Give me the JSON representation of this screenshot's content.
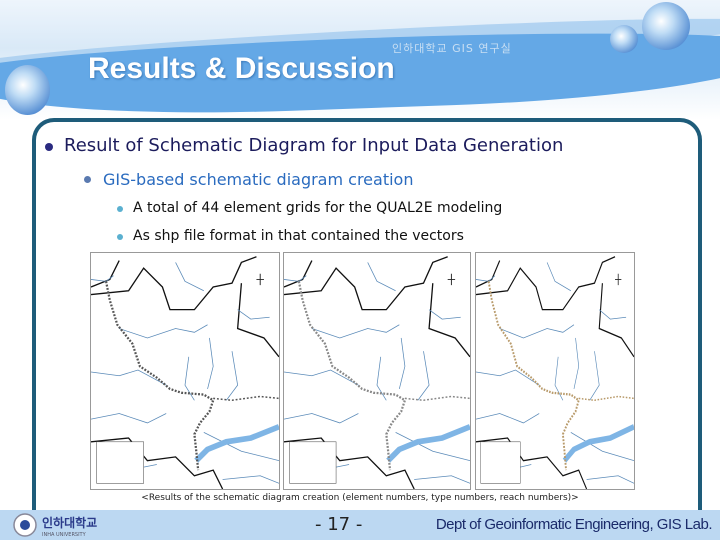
{
  "header": {
    "title": "Results & Discussion",
    "subtitle": "인하대학교 GIS 연구실"
  },
  "content": {
    "bullet1": "Result of Schematic Diagram for Input Data Generation",
    "bullet2": "GIS-based schematic diagram creation",
    "bullet3": [
      "A total of 44 element grids for the QUAL2E modeling",
      "As shp file format in that contained the vectors"
    ]
  },
  "figure": {
    "caption": "<Results of the schematic diagram creation (element numbers, type numbers, reach numbers)>",
    "maps": [
      {
        "schematic_color": "#555555"
      },
      {
        "schematic_color": "#888888"
      },
      {
        "schematic_color": "#b89a6a"
      }
    ]
  },
  "footer": {
    "university": "인하대학교 INHA UNIVERSITY",
    "page": "- 17 -",
    "dept": "Dept of Geoinformatic Engineering, GIS Lab."
  },
  "colors": {
    "band": "#64a8e6",
    "border": "#1e5c7a",
    "footer": "#bcd8f2"
  }
}
